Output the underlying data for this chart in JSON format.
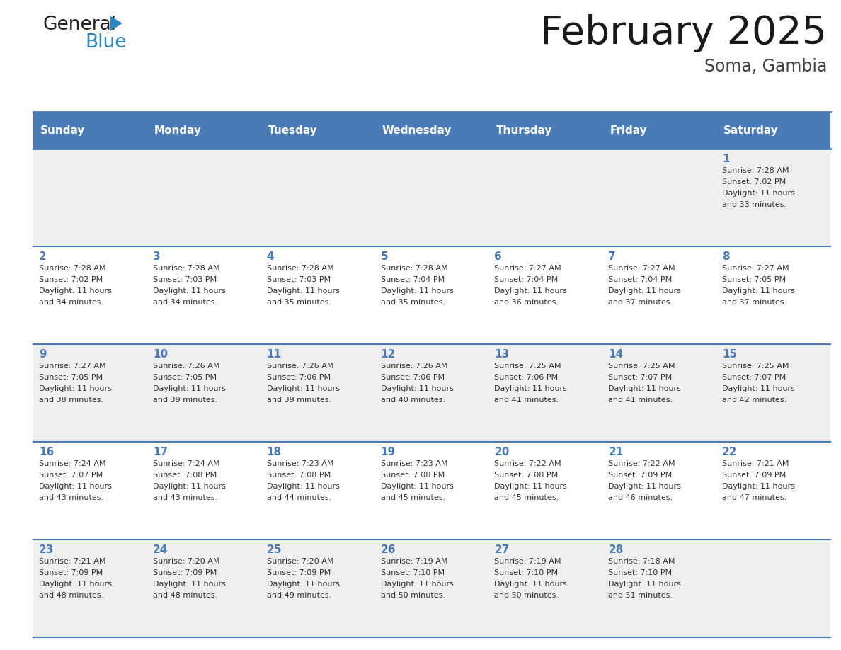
{
  "title": "February 2025",
  "subtitle": "Soma, Gambia",
  "header_bg": "#4A7BB7",
  "header_text_color": "#FFFFFF",
  "days_of_week": [
    "Sunday",
    "Monday",
    "Tuesday",
    "Wednesday",
    "Thursday",
    "Friday",
    "Saturday"
  ],
  "cell_bg": "#EFEFEF",
  "cell_bg_white": "#FFFFFF",
  "grid_line_color": "#4A7BB7",
  "date_color": "#4A7BB7",
  "info_color": "#333333",
  "logo_general_color": "#222222",
  "logo_blue_color": "#2E86C1",
  "logo_triangle_color": "#2E86C1",
  "weeks": [
    {
      "days": [
        {
          "day": null,
          "info": ""
        },
        {
          "day": null,
          "info": ""
        },
        {
          "day": null,
          "info": ""
        },
        {
          "day": null,
          "info": ""
        },
        {
          "day": null,
          "info": ""
        },
        {
          "day": null,
          "info": ""
        },
        {
          "day": 1,
          "info": "Sunrise: 7:28 AM\nSunset: 7:02 PM\nDaylight: 11 hours\nand 33 minutes."
        }
      ]
    },
    {
      "days": [
        {
          "day": 2,
          "info": "Sunrise: 7:28 AM\nSunset: 7:02 PM\nDaylight: 11 hours\nand 34 minutes."
        },
        {
          "day": 3,
          "info": "Sunrise: 7:28 AM\nSunset: 7:03 PM\nDaylight: 11 hours\nand 34 minutes."
        },
        {
          "day": 4,
          "info": "Sunrise: 7:28 AM\nSunset: 7:03 PM\nDaylight: 11 hours\nand 35 minutes."
        },
        {
          "day": 5,
          "info": "Sunrise: 7:28 AM\nSunset: 7:04 PM\nDaylight: 11 hours\nand 35 minutes."
        },
        {
          "day": 6,
          "info": "Sunrise: 7:27 AM\nSunset: 7:04 PM\nDaylight: 11 hours\nand 36 minutes."
        },
        {
          "day": 7,
          "info": "Sunrise: 7:27 AM\nSunset: 7:04 PM\nDaylight: 11 hours\nand 37 minutes."
        },
        {
          "day": 8,
          "info": "Sunrise: 7:27 AM\nSunset: 7:05 PM\nDaylight: 11 hours\nand 37 minutes."
        }
      ]
    },
    {
      "days": [
        {
          "day": 9,
          "info": "Sunrise: 7:27 AM\nSunset: 7:05 PM\nDaylight: 11 hours\nand 38 minutes."
        },
        {
          "day": 10,
          "info": "Sunrise: 7:26 AM\nSunset: 7:05 PM\nDaylight: 11 hours\nand 39 minutes."
        },
        {
          "day": 11,
          "info": "Sunrise: 7:26 AM\nSunset: 7:06 PM\nDaylight: 11 hours\nand 39 minutes."
        },
        {
          "day": 12,
          "info": "Sunrise: 7:26 AM\nSunset: 7:06 PM\nDaylight: 11 hours\nand 40 minutes."
        },
        {
          "day": 13,
          "info": "Sunrise: 7:25 AM\nSunset: 7:06 PM\nDaylight: 11 hours\nand 41 minutes."
        },
        {
          "day": 14,
          "info": "Sunrise: 7:25 AM\nSunset: 7:07 PM\nDaylight: 11 hours\nand 41 minutes."
        },
        {
          "day": 15,
          "info": "Sunrise: 7:25 AM\nSunset: 7:07 PM\nDaylight: 11 hours\nand 42 minutes."
        }
      ]
    },
    {
      "days": [
        {
          "day": 16,
          "info": "Sunrise: 7:24 AM\nSunset: 7:07 PM\nDaylight: 11 hours\nand 43 minutes."
        },
        {
          "day": 17,
          "info": "Sunrise: 7:24 AM\nSunset: 7:08 PM\nDaylight: 11 hours\nand 43 minutes."
        },
        {
          "day": 18,
          "info": "Sunrise: 7:23 AM\nSunset: 7:08 PM\nDaylight: 11 hours\nand 44 minutes."
        },
        {
          "day": 19,
          "info": "Sunrise: 7:23 AM\nSunset: 7:08 PM\nDaylight: 11 hours\nand 45 minutes."
        },
        {
          "day": 20,
          "info": "Sunrise: 7:22 AM\nSunset: 7:08 PM\nDaylight: 11 hours\nand 45 minutes."
        },
        {
          "day": 21,
          "info": "Sunrise: 7:22 AM\nSunset: 7:09 PM\nDaylight: 11 hours\nand 46 minutes."
        },
        {
          "day": 22,
          "info": "Sunrise: 7:21 AM\nSunset: 7:09 PM\nDaylight: 11 hours\nand 47 minutes."
        }
      ]
    },
    {
      "days": [
        {
          "day": 23,
          "info": "Sunrise: 7:21 AM\nSunset: 7:09 PM\nDaylight: 11 hours\nand 48 minutes."
        },
        {
          "day": 24,
          "info": "Sunrise: 7:20 AM\nSunset: 7:09 PM\nDaylight: 11 hours\nand 48 minutes."
        },
        {
          "day": 25,
          "info": "Sunrise: 7:20 AM\nSunset: 7:09 PM\nDaylight: 11 hours\nand 49 minutes."
        },
        {
          "day": 26,
          "info": "Sunrise: 7:19 AM\nSunset: 7:10 PM\nDaylight: 11 hours\nand 50 minutes."
        },
        {
          "day": 27,
          "info": "Sunrise: 7:19 AM\nSunset: 7:10 PM\nDaylight: 11 hours\nand 50 minutes."
        },
        {
          "day": 28,
          "info": "Sunrise: 7:18 AM\nSunset: 7:10 PM\nDaylight: 11 hours\nand 51 minutes."
        },
        {
          "day": null,
          "info": ""
        }
      ]
    }
  ]
}
